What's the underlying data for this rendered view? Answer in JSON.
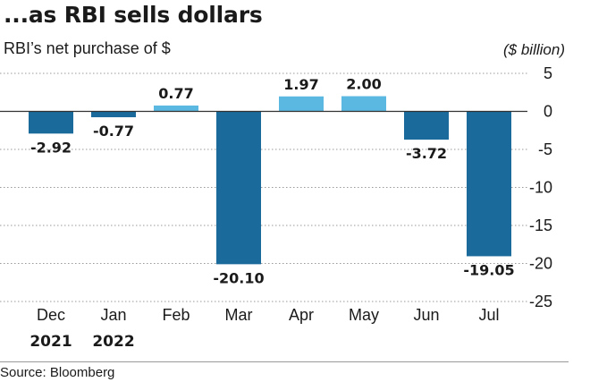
{
  "title": "...as RBI sells dollars",
  "subtitle": "RBI’s net purchase of $",
  "unit": "($ billion)",
  "source": "Source: Bloomberg",
  "colors": {
    "negative": "#1a6a9c",
    "positive": "#5bb8e0",
    "grid": "#9a9a9a"
  },
  "chart_data": {
    "type": "bar",
    "title": "...as RBI sells dollars",
    "subtitle": "RBI’s net purchase of $",
    "ylabel": "($ billion)",
    "categories": [
      "Dec",
      "Jan",
      "Feb",
      "Mar",
      "Apr",
      "May",
      "Jun",
      "Jul"
    ],
    "category_groups": [
      "2021",
      "2022",
      "",
      "",
      "",
      "",
      "",
      ""
    ],
    "values": [
      -2.92,
      -0.77,
      0.77,
      -20.1,
      1.97,
      2.0,
      -3.72,
      -19.05
    ],
    "value_labels": [
      "-2.92",
      "-0.77",
      "0.77",
      "-20.10",
      "1.97",
      "2.00",
      "-3.72",
      "-19.05"
    ],
    "ylim": [
      -25,
      5
    ],
    "yticks": [
      5,
      0,
      -5,
      -10,
      -15,
      -20,
      -25
    ],
    "ytick_labels": [
      "5",
      "0",
      "-5",
      "-10",
      "-15",
      "-20",
      "-25"
    ],
    "grid": true,
    "y_axis_side": "right"
  }
}
